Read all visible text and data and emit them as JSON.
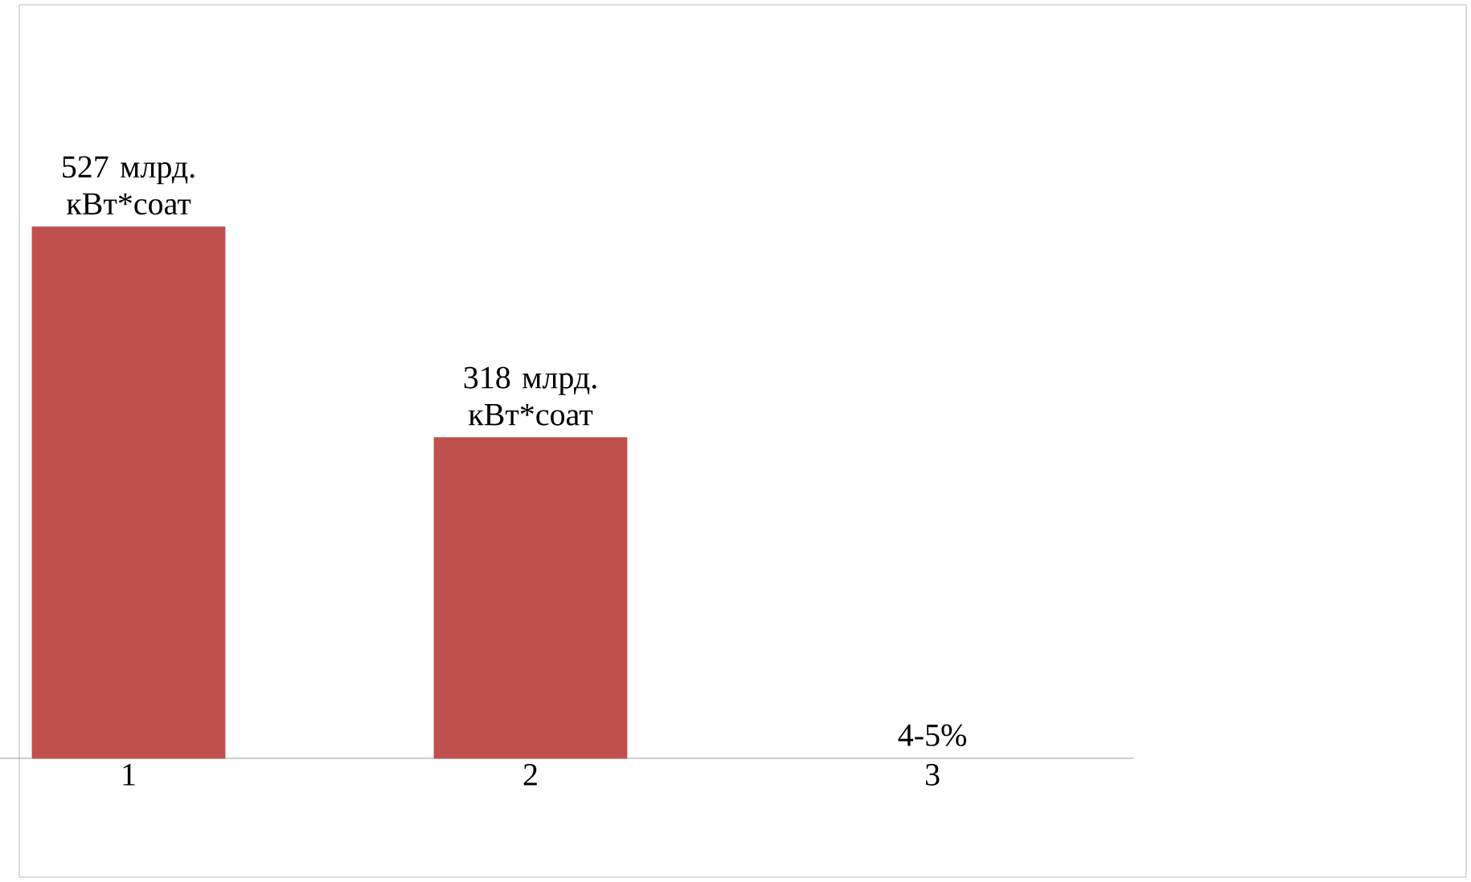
{
  "chart_data": {
    "type": "bar",
    "categories": [
      "1",
      "2",
      "3"
    ],
    "values": [
      527,
      318,
      null
    ],
    "color": "#c0504d",
    "value_labels": [
      "527 млрд. кВт*соат",
      "318 млрд. кВт*соат",
      "4-5%"
    ]
  }
}
